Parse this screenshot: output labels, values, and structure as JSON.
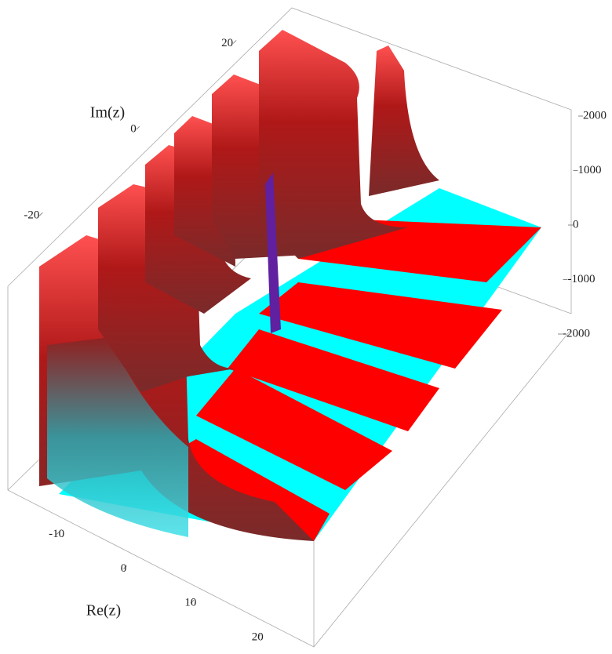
{
  "chart_data": {
    "type": "surface3d",
    "xlabel": "Re(z)",
    "ylabel": "Im(z)",
    "xlim": [
      -14,
      25
    ],
    "xticks": [
      -10,
      0,
      10,
      20
    ],
    "ylim": [
      -28,
      25
    ],
    "yticks": [
      -20,
      0,
      20
    ],
    "zlim": [
      -2000,
      2000
    ],
    "zticks": [
      -2000,
      -1000,
      0,
      1000,
      2000
    ],
    "colors": [
      "#ff0000",
      "#00ffff"
    ]
  }
}
